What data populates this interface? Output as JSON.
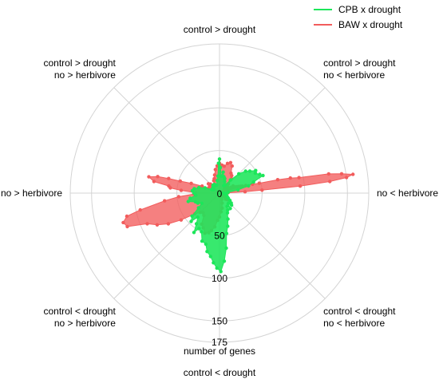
{
  "chart_data": {
    "type": "radar",
    "rlabel": "number of genes",
    "rlim": [
      0,
      175
    ],
    "rticks": [
      {
        "value": 0,
        "label": "0"
      },
      {
        "value": 50,
        "label": "50"
      },
      {
        "value": 100,
        "label": "100"
      },
      {
        "value": 150,
        "label": "150"
      },
      {
        "value": 175,
        "label": "175"
      }
    ],
    "direction_labels": [
      {
        "angle": 90,
        "lines": [
          "control > drought"
        ]
      },
      {
        "angle": 45,
        "lines": [
          "control > drought",
          "no < herbivore"
        ]
      },
      {
        "angle": 0,
        "lines": [
          "no < herbivore"
        ]
      },
      {
        "angle": -45,
        "lines": [
          "control < drought",
          "no < herbivore"
        ]
      },
      {
        "angle": -90,
        "lines": [
          "control < drought"
        ]
      },
      {
        "angle": -135,
        "lines": [
          "control < drought",
          "no > herbivore"
        ]
      },
      {
        "angle": 180,
        "lines": [
          "no > herbivore"
        ]
      },
      {
        "angle": 135,
        "lines": [
          "control > drought",
          "no > herbivore"
        ]
      }
    ],
    "legend": {
      "position": "top-right"
    },
    "series": [
      {
        "name": "BAW x drought",
        "color": "#f25c5c",
        "points": [
          [
            1,
            5
          ],
          [
            2,
            10
          ],
          [
            3,
            30
          ],
          [
            4,
            50
          ],
          [
            5,
            95
          ],
          [
            6,
            130
          ],
          [
            7,
            150
          ],
          [
            8,
            158
          ],
          [
            9,
            145
          ],
          [
            10,
            130
          ],
          [
            11,
            95
          ],
          [
            12,
            85
          ],
          [
            13,
            70
          ],
          [
            14,
            48
          ],
          [
            15,
            40
          ],
          [
            16,
            32
          ],
          [
            17,
            28
          ],
          [
            18,
            26
          ],
          [
            19,
            24
          ],
          [
            20,
            22
          ],
          [
            21,
            20
          ],
          [
            22,
            18
          ],
          [
            23,
            15
          ],
          [
            24,
            12
          ],
          [
            25,
            10
          ],
          [
            26,
            12
          ],
          [
            27,
            15
          ],
          [
            28,
            18
          ],
          [
            30,
            12
          ],
          [
            32,
            8
          ],
          [
            35,
            10
          ],
          [
            38,
            12
          ],
          [
            40,
            10
          ],
          [
            43,
            8
          ],
          [
            46,
            15
          ],
          [
            50,
            22
          ],
          [
            55,
            25
          ],
          [
            60,
            27
          ],
          [
            65,
            35
          ],
          [
            70,
            38
          ],
          [
            75,
            36
          ],
          [
            80,
            32
          ],
          [
            85,
            33
          ],
          [
            90,
            35
          ],
          [
            95,
            32
          ],
          [
            100,
            28
          ],
          [
            105,
            22
          ],
          [
            110,
            18
          ],
          [
            115,
            16
          ],
          [
            120,
            12
          ],
          [
            125,
            10
          ],
          [
            130,
            12
          ],
          [
            135,
            15
          ],
          [
            140,
            17
          ],
          [
            145,
            14
          ],
          [
            150,
            10
          ],
          [
            155,
            14
          ],
          [
            158,
            22
          ],
          [
            161,
            35
          ],
          [
            163,
            48
          ],
          [
            164,
            62
          ],
          [
            165,
            75
          ],
          [
            167,
            85
          ],
          [
            170,
            78
          ],
          [
            172,
            60
          ],
          [
            174,
            58
          ],
          [
            176,
            45
          ],
          [
            179,
            28
          ],
          [
            182,
            30
          ],
          [
            185,
            48
          ],
          [
            188,
            65
          ],
          [
            192,
            95
          ],
          [
            194,
            112
          ],
          [
            197,
            118
          ],
          [
            200,
            115
          ],
          [
            203,
            92
          ],
          [
            207,
            82
          ],
          [
            211,
            70
          ],
          [
            215,
            55
          ],
          [
            220,
            38
          ],
          [
            225,
            32
          ],
          [
            230,
            30
          ],
          [
            235,
            32
          ],
          [
            240,
            42
          ],
          [
            245,
            45
          ],
          [
            250,
            50
          ],
          [
            255,
            48
          ],
          [
            258,
            45
          ],
          [
            262,
            40
          ],
          [
            266,
            32
          ],
          [
            270,
            28
          ],
          [
            275,
            22
          ],
          [
            280,
            18
          ],
          [
            285,
            12
          ],
          [
            290,
            8
          ],
          [
            295,
            6
          ],
          [
            300,
            5
          ],
          [
            305,
            4
          ],
          [
            310,
            5
          ],
          [
            315,
            10
          ],
          [
            320,
            12
          ],
          [
            325,
            10
          ],
          [
            330,
            8
          ],
          [
            335,
            6
          ],
          [
            340,
            4
          ],
          [
            345,
            8
          ],
          [
            350,
            6
          ],
          [
            355,
            4
          ]
        ]
      },
      {
        "name": "CPB x drought",
        "color": "#1ce65a",
        "points": [
          [
            1,
            5
          ],
          [
            5,
            10
          ],
          [
            10,
            22
          ],
          [
            14,
            35
          ],
          [
            18,
            42
          ],
          [
            22,
            55
          ],
          [
            25,
            52
          ],
          [
            29,
            48
          ],
          [
            32,
            50
          ],
          [
            36,
            44
          ],
          [
            40,
            40
          ],
          [
            45,
            32
          ],
          [
            50,
            20
          ],
          [
            55,
            12
          ],
          [
            60,
            10
          ],
          [
            66,
            15
          ],
          [
            70,
            18
          ],
          [
            75,
            20
          ],
          [
            80,
            25
          ],
          [
            84,
            20
          ],
          [
            88,
            30
          ],
          [
            90,
            40
          ],
          [
            92,
            35
          ],
          [
            95,
            20
          ],
          [
            100,
            15
          ],
          [
            110,
            10
          ],
          [
            120,
            12
          ],
          [
            130,
            12
          ],
          [
            140,
            10
          ],
          [
            150,
            8
          ],
          [
            155,
            10
          ],
          [
            160,
            18
          ],
          [
            165,
            25
          ],
          [
            170,
            30
          ],
          [
            175,
            32
          ],
          [
            180,
            30
          ],
          [
            185,
            28
          ],
          [
            190,
            35
          ],
          [
            195,
            38
          ],
          [
            200,
            30
          ],
          [
            205,
            28
          ],
          [
            210,
            24
          ],
          [
            215,
            30
          ],
          [
            220,
            42
          ],
          [
            225,
            47
          ],
          [
            228,
            38
          ],
          [
            233,
            45
          ],
          [
            237,
            55
          ],
          [
            240,
            48
          ],
          [
            245,
            50
          ],
          [
            250,
            60
          ],
          [
            255,
            62
          ],
          [
            258,
            70
          ],
          [
            262,
            75
          ],
          [
            265,
            82
          ],
          [
            268,
            88
          ],
          [
            271,
            92
          ],
          [
            274,
            80
          ],
          [
            277,
            65
          ],
          [
            280,
            48
          ],
          [
            284,
            40
          ],
          [
            288,
            32
          ],
          [
            292,
            25
          ],
          [
            296,
            22
          ],
          [
            300,
            18
          ],
          [
            305,
            22
          ],
          [
            310,
            16
          ],
          [
            315,
            20
          ],
          [
            320,
            18
          ],
          [
            325,
            15
          ],
          [
            330,
            12
          ],
          [
            335,
            10
          ],
          [
            340,
            9
          ],
          [
            345,
            8
          ],
          [
            350,
            7
          ],
          [
            355,
            6
          ]
        ]
      }
    ]
  }
}
